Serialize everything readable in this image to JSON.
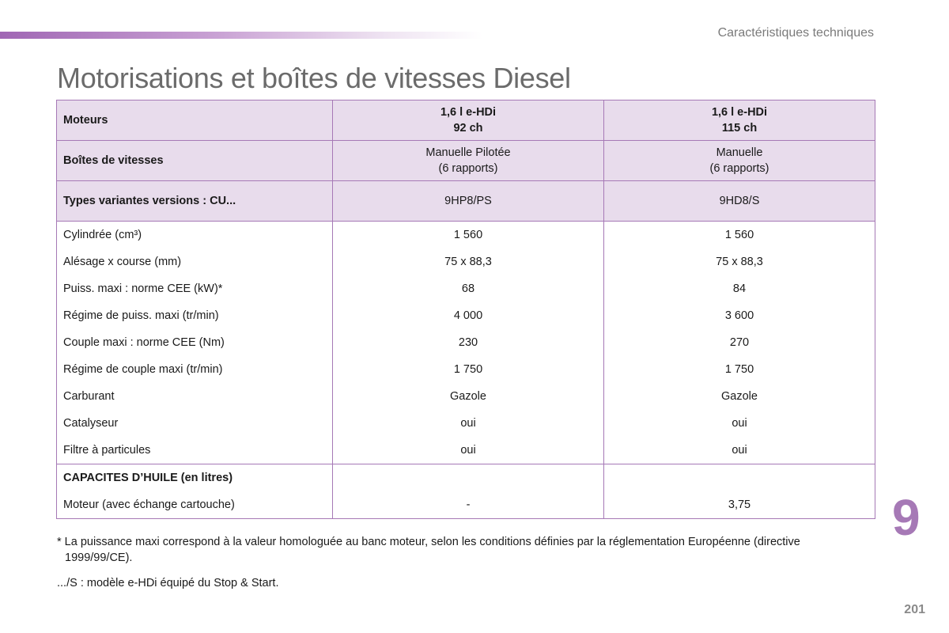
{
  "header": {
    "section_label": "Caractéristiques techniques"
  },
  "title": "Motorisations et boîtes de vitesses Diesel",
  "table": {
    "header_rows": [
      {
        "label": "Moteurs",
        "col1_line1": "1,6 l e-HDi",
        "col1_line2": "92 ch",
        "col2_line1": "1,6 l e-HDi",
        "col2_line2": "115 ch"
      },
      {
        "label": "Boîtes de vitesses",
        "col1_line1": "Manuelle Pilotée",
        "col1_line2": "(6 rapports)",
        "col2_line1": "Manuelle",
        "col2_line2": "(6 rapports)"
      },
      {
        "label": "Types variantes versions : CU...",
        "col1": "9HP8/PS",
        "col2": "9HD8/S"
      }
    ],
    "rows": [
      {
        "label": "Cylindrée (cm³)",
        "col1": "1 560",
        "col2": "1 560"
      },
      {
        "label": "Alésage x course (mm)",
        "col1": "75 x 88,3",
        "col2": "75 x 88,3"
      },
      {
        "label": "Puiss. maxi : norme CEE (kW)*",
        "col1": "68",
        "col2": "84"
      },
      {
        "label": "Régime de puiss. maxi (tr/min)",
        "col1": "4 000",
        "col2": "3 600"
      },
      {
        "label": "Couple maxi : norme CEE (Nm)",
        "col1": "230",
        "col2": "270"
      },
      {
        "label": "Régime de couple maxi (tr/min)",
        "col1": "1 750",
        "col2": "1 750"
      },
      {
        "label": "Carburant",
        "col1": "Gazole",
        "col2": "Gazole"
      },
      {
        "label": "Catalyseur",
        "col1": "oui",
        "col2": "oui"
      },
      {
        "label": "Filtre à particules",
        "col1": "oui",
        "col2": "oui"
      }
    ],
    "oil_section": {
      "heading": "CAPACITES D’HUILE (en litres)",
      "row_label": "Moteur (avec échange cartouche)",
      "col1": "-",
      "col2": "3,75"
    }
  },
  "footnotes": {
    "note1_line1": "* La puissance maxi correspond à la valeur homologuée au banc moteur, selon les conditions définies par la réglementation Européenne (directive",
    "note1_line2": "1999/99/CE).",
    "note2": ".../S : modèle e-HDi équipé du Stop & Start."
  },
  "chapter_number": "9",
  "page_number": "201",
  "colors": {
    "accent": "#a679b6",
    "header_fill": "#e8dcec"
  }
}
